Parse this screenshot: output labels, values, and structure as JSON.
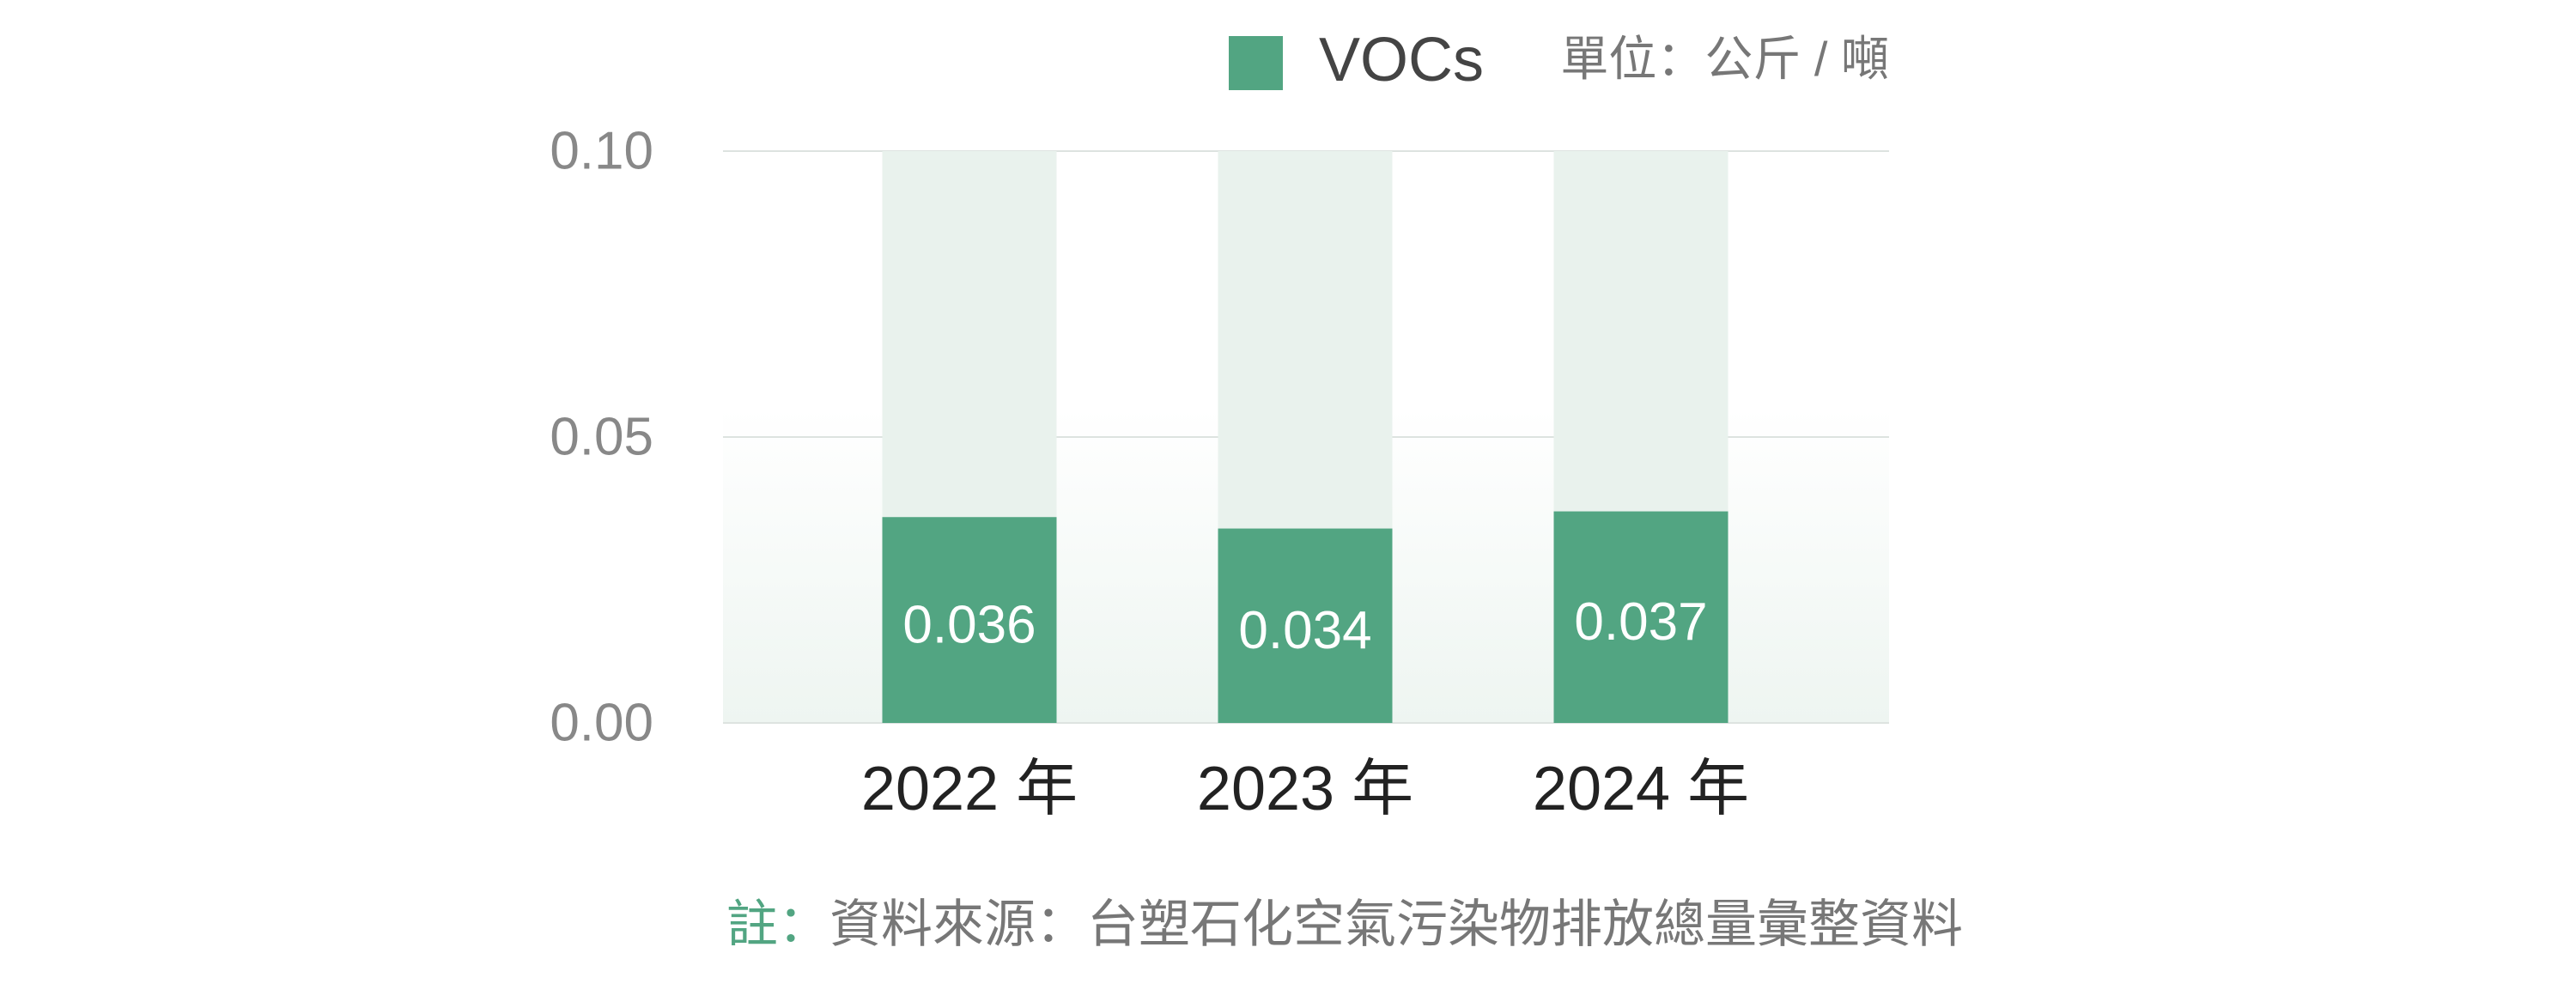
{
  "chart_data": {
    "type": "bar",
    "unit": "單位：公斤 / 噸",
    "categories": [
      "2022 年",
      "2023 年",
      "2024 年"
    ],
    "series": [
      {
        "name": "VOCs",
        "color": "#52a582",
        "values": [
          0.036,
          0.034,
          0.037
        ]
      }
    ],
    "ylim": [
      0,
      0.1
    ],
    "yticks": [
      {
        "value": 0,
        "label": "0.00"
      },
      0.05,
      {
        "value": 0.1,
        "label": "0.10"
      }
    ],
    "grid": true,
    "note_label": "註：",
    "note": "資料來源：台塑石化空氣污染物排放總量彙整資料"
  }
}
